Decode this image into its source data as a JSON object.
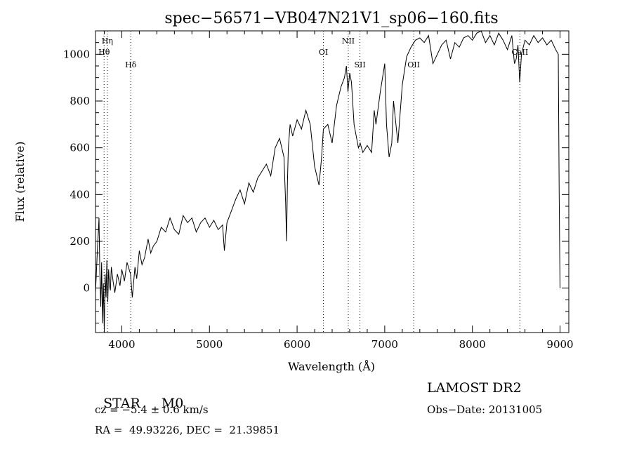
{
  "chart_data": {
    "type": "line",
    "title": "spec−56571−VB047N21V1_sp06−160.fits",
    "xlabel": "Wavelength (Å)",
    "ylabel": "Flux (relative)",
    "xlim": [
      3700,
      9100
    ],
    "ylim": [
      -190,
      1100
    ],
    "xticks": [
      4000,
      5000,
      6000,
      7000,
      8000,
      9000
    ],
    "yticks": [
      0,
      200,
      400,
      600,
      800,
      1000
    ],
    "grid": false,
    "series": [
      {
        "x": [
          3700,
          3720,
          3740,
          3750,
          3760,
          3770,
          3780,
          3790,
          3800,
          3810,
          3820,
          3830,
          3840,
          3850,
          3860,
          3870,
          3880,
          3900,
          3920,
          3950,
          3980,
          4000,
          4030,
          4060,
          4100,
          4120,
          4150,
          4170,
          4200,
          4230,
          4260,
          4300,
          4330,
          4360,
          4400,
          4450,
          4500,
          4550,
          4600,
          4650,
          4700,
          4750,
          4800,
          4850,
          4900,
          4950,
          5000,
          5050,
          5100,
          5150,
          5170,
          5200,
          5250,
          5300,
          5350,
          5400,
          5450,
          5500,
          5550,
          5600,
          5650,
          5700,
          5750,
          5800,
          5850,
          5870,
          5880,
          5890,
          5900,
          5920,
          5950,
          6000,
          6050,
          6100,
          6150,
          6200,
          6250,
          6280,
          6300,
          6350,
          6400,
          6450,
          6500,
          6540,
          6563,
          6580,
          6600,
          6620,
          6650,
          6680,
          6700,
          6720,
          6750,
          6800,
          6850,
          6880,
          6900,
          6950,
          7000,
          7020,
          7050,
          7080,
          7100,
          7150,
          7200,
          7250,
          7300,
          7350,
          7400,
          7450,
          7500,
          7550,
          7600,
          7650,
          7700,
          7750,
          7800,
          7850,
          7900,
          7950,
          8000,
          8050,
          8100,
          8150,
          8200,
          8250,
          8300,
          8350,
          8400,
          8450,
          8480,
          8500,
          8520,
          8540,
          8560,
          8600,
          8650,
          8700,
          8750,
          8800,
          8850,
          8900,
          8950,
          8980,
          8990,
          9000
        ],
        "y": [
          -20,
          150,
          300,
          60,
          -80,
          110,
          -150,
          20,
          -180,
          60,
          -40,
          120,
          -60,
          80,
          10,
          -10,
          90,
          30,
          -20,
          60,
          10,
          80,
          30,
          110,
          60,
          -40,
          90,
          40,
          160,
          100,
          130,
          210,
          150,
          180,
          200,
          260,
          240,
          300,
          250,
          230,
          310,
          280,
          300,
          240,
          280,
          300,
          260,
          290,
          250,
          270,
          160,
          280,
          330,
          380,
          420,
          360,
          450,
          410,
          470,
          500,
          530,
          480,
          600,
          640,
          560,
          360,
          200,
          450,
          600,
          700,
          650,
          720,
          680,
          760,
          700,
          520,
          440,
          560,
          680,
          700,
          620,
          780,
          860,
          900,
          950,
          840,
          920,
          880,
          700,
          640,
          600,
          620,
          580,
          610,
          580,
          760,
          700,
          840,
          960,
          700,
          560,
          620,
          800,
          620,
          870,
          990,
          1030,
          1060,
          1070,
          1050,
          1080,
          960,
          1000,
          1040,
          1060,
          980,
          1050,
          1030,
          1070,
          1080,
          1060,
          1090,
          1100,
          1050,
          1080,
          1040,
          1090,
          1060,
          1020,
          1080,
          960,
          980,
          1040,
          880,
          1000,
          1060,
          1040,
          1080,
          1050,
          1070,
          1040,
          1060,
          1020,
          1000,
          400,
          0
        ]
      }
    ],
    "spectral_lines": [
      {
        "label": "Hη",
        "x": 3835,
        "row": 1
      },
      {
        "label": "Hθ",
        "x": 3798,
        "row": 2
      },
      {
        "label": "Hδ",
        "x": 4102,
        "row": 3
      },
      {
        "label": "OI",
        "x": 6300,
        "row": 2
      },
      {
        "label": "NII",
        "x": 6584,
        "row": 1
      },
      {
        "label": "SII",
        "x": 6717,
        "row": 3
      },
      {
        "label": "OII",
        "x": 7330,
        "row": 3
      },
      {
        "label": "CaII",
        "x": 8542,
        "row": 2
      }
    ]
  },
  "info": {
    "class_label": "STAR",
    "subclass": "M0",
    "redshift": "cz = −5.4 ± 0.6 km/s",
    "coords": "RA =  49.93226, DEC =  21.39851",
    "survey": "LAMOST DR2",
    "obs_date": "Obs−Date: 20131005"
  }
}
